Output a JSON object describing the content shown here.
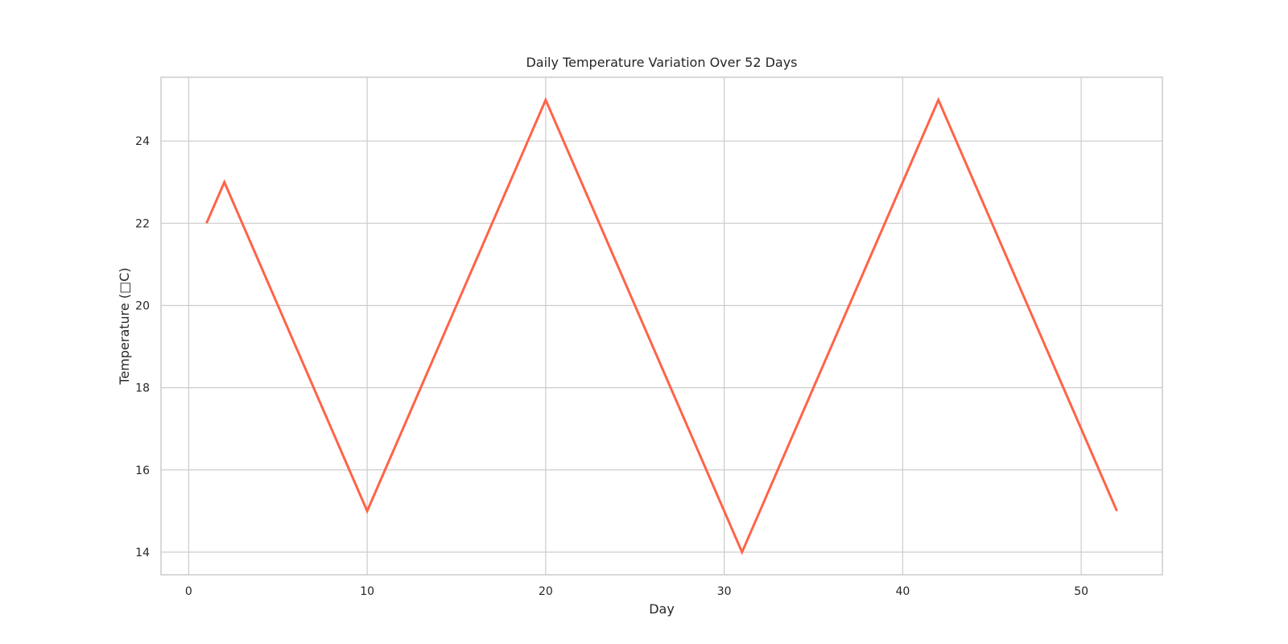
{
  "chart_data": {
    "type": "line",
    "title": "Daily Temperature Variation Over 52 Days",
    "xlabel": "Day",
    "ylabel": "Temperature (□C)",
    "x": [
      1,
      2,
      3,
      4,
      5,
      6,
      7,
      8,
      9,
      10,
      11,
      12,
      13,
      14,
      15,
      16,
      17,
      18,
      19,
      20,
      21,
      22,
      23,
      24,
      25,
      26,
      27,
      28,
      29,
      30,
      31,
      32,
      33,
      34,
      35,
      36,
      37,
      38,
      39,
      40,
      41,
      42,
      43,
      44,
      45,
      46,
      47,
      48,
      49,
      50,
      51,
      52
    ],
    "series": [
      {
        "values": [
          22,
          23,
          22,
          21,
          20,
          19,
          18,
          17,
          16,
          15,
          16,
          17,
          18,
          19,
          20,
          21,
          22,
          23,
          24,
          25,
          24,
          23,
          22,
          21,
          20,
          19,
          18,
          17,
          16,
          15,
          14,
          15,
          16,
          17,
          18,
          19,
          20,
          21,
          22,
          23,
          24,
          25,
          24,
          23,
          22,
          21,
          20,
          19,
          18,
          17,
          16,
          15
        ],
        "color": "#ff6347"
      }
    ],
    "xlim": [
      -1.55,
      54.55
    ],
    "ylim": [
      13.45,
      25.55
    ],
    "xticks": [
      "0",
      "10",
      "20",
      "30",
      "40",
      "50"
    ],
    "yticks": [
      "14",
      "16",
      "18",
      "20",
      "22",
      "24"
    ],
    "grid": true,
    "legend": "none"
  }
}
